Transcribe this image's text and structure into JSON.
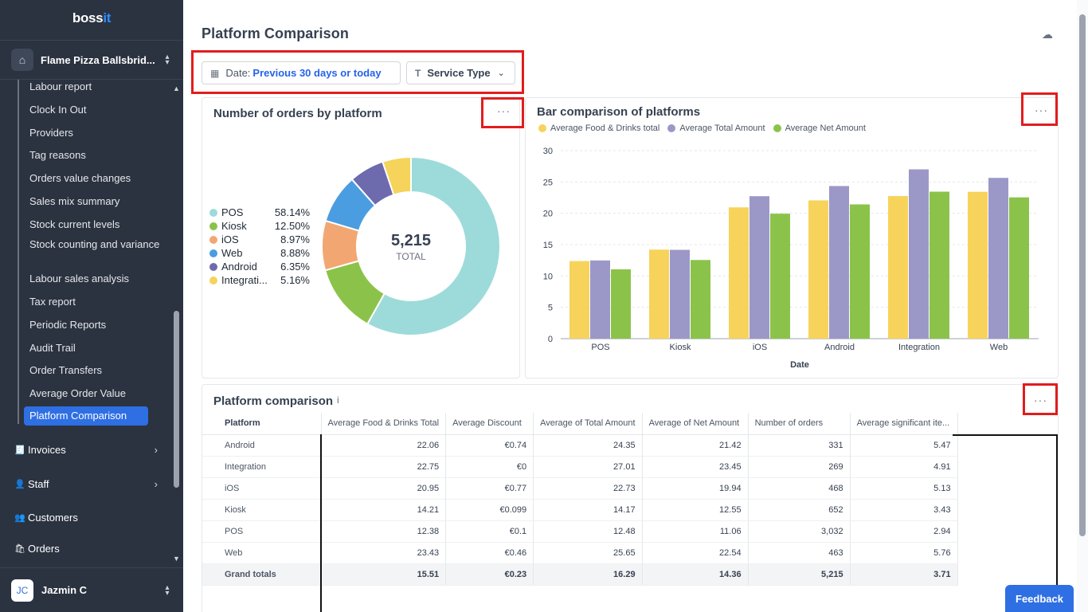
{
  "brand": {
    "name": "boss",
    "suffix": "it"
  },
  "venue": {
    "name": "Flame Pizza Ballsbrid..."
  },
  "sidebar": {
    "sub_items": [
      {
        "label": "Labour report",
        "top": 0
      },
      {
        "label": "Clock In Out"
      },
      {
        "label": "Providers"
      },
      {
        "label": "Tag reasons"
      },
      {
        "label": "Orders value changes"
      },
      {
        "label": "Sales mix summary"
      },
      {
        "label": "Stock current levels"
      },
      {
        "label": "Stock counting and variance"
      },
      {
        "label": "Labour sales analysis"
      },
      {
        "label": "Tax report"
      },
      {
        "label": "Periodic Reports"
      },
      {
        "label": "Audit Trail"
      },
      {
        "label": "Order Transfers"
      },
      {
        "label": "Average Order Value"
      },
      {
        "label": "Platform Comparison",
        "active": true
      }
    ],
    "main_items": [
      {
        "label": "Invoices",
        "icon": "invoice-icon"
      },
      {
        "label": "Staff",
        "icon": "staff-icon"
      },
      {
        "label": "Customers",
        "icon": "customers-icon"
      },
      {
        "label": "Orders",
        "icon": "orders-icon"
      }
    ]
  },
  "user": {
    "initials": "JC",
    "name": "Jazmin C"
  },
  "page": {
    "title": "Platform Comparison"
  },
  "filters": {
    "date_label": "Date:",
    "date_value": "Previous 30 days or today",
    "service_type": "Service Type"
  },
  "donut_card": {
    "title": "Number of orders by platform",
    "more": "···",
    "total_value": "5,215",
    "total_label": "TOTAL"
  },
  "bar_card": {
    "title": "Bar comparison of platforms",
    "more": "···"
  },
  "table_card": {
    "title": "Platform comparison",
    "info": "i",
    "more": "···"
  },
  "chart_data": [
    {
      "type": "pie",
      "title": "Number of orders by platform",
      "categories": [
        "POS",
        "Kiosk",
        "iOS",
        "Web",
        "Android",
        "Integrati..."
      ],
      "values": [
        58.14,
        12.5,
        8.97,
        8.88,
        6.35,
        5.16
      ],
      "labels": [
        "58.14%",
        "12.50%",
        "8.97%",
        "8.88%",
        "6.35%",
        "5.16%"
      ],
      "colors": [
        "#9ddbda",
        "#8bc34a",
        "#f2a772",
        "#4a9de0",
        "#6e6aae",
        "#f6d35a"
      ],
      "center_value": "5,215",
      "center_label": "TOTAL",
      "legend": "left"
    },
    {
      "type": "bar",
      "title": "Bar comparison of platforms",
      "categories": [
        "POS",
        "Kiosk",
        "iOS",
        "Android",
        "Integration",
        "Web"
      ],
      "series": [
        {
          "name": "Average Food & Drinks total",
          "color": "#f7d35c",
          "values": [
            12.38,
            14.21,
            20.95,
            22.06,
            22.75,
            23.43
          ]
        },
        {
          "name": "Average Total Amount",
          "color": "#9b98c8",
          "values": [
            12.48,
            14.17,
            22.73,
            24.35,
            27.01,
            25.65
          ]
        },
        {
          "name": "Average Net Amount",
          "color": "#8bc34a",
          "values": [
            11.06,
            12.55,
            19.94,
            21.42,
            23.45,
            22.54
          ]
        }
      ],
      "xlabel": "Date",
      "ylabel": "",
      "ylim": [
        0,
        30
      ],
      "yticks": [
        0,
        5,
        10,
        15,
        20,
        25,
        30
      ],
      "grid": true,
      "legend": "top-left"
    }
  ],
  "table": {
    "headers": [
      "Platform",
      "Average Food & Drinks Total",
      "Average Discount",
      "Average of Total Amount",
      "Average of Net Amount",
      "Number of orders",
      "Average significant ite..."
    ],
    "rows": [
      [
        "Android",
        "22.06",
        "€0.74",
        "24.35",
        "21.42",
        "331",
        "5.47"
      ],
      [
        "Integration",
        "22.75",
        "€0",
        "27.01",
        "23.45",
        "269",
        "4.91"
      ],
      [
        "iOS",
        "20.95",
        "€0.77",
        "22.73",
        "19.94",
        "468",
        "5.13"
      ],
      [
        "Kiosk",
        "14.21",
        "€0.099",
        "14.17",
        "12.55",
        "652",
        "3.43"
      ],
      [
        "POS",
        "12.38",
        "€0.1",
        "12.48",
        "11.06",
        "3,032",
        "2.94"
      ],
      [
        "Web",
        "23.43",
        "€0.46",
        "25.65",
        "22.54",
        "463",
        "5.76"
      ]
    ],
    "totals": [
      "Grand totals",
      "15.51",
      "€0.23",
      "16.29",
      "14.36",
      "5,215",
      "3.71"
    ]
  },
  "feedback": {
    "label": "Feedback"
  }
}
